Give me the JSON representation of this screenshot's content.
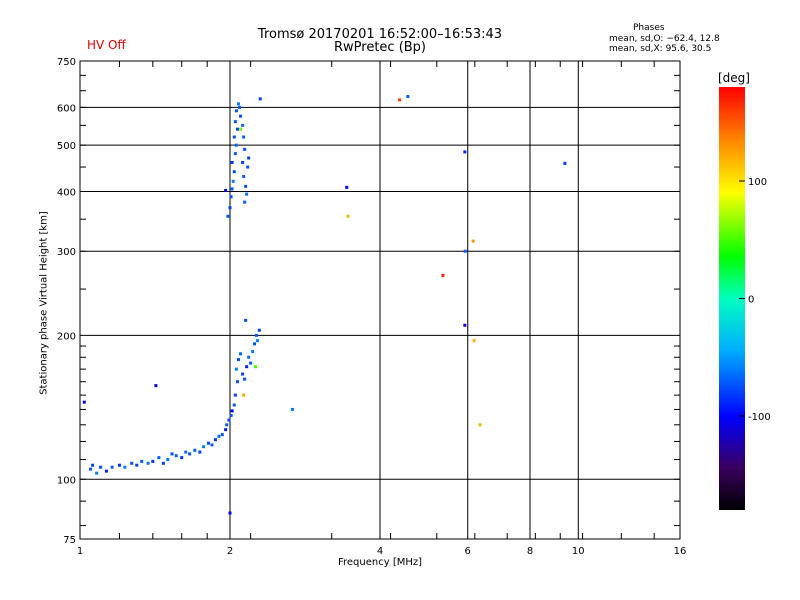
{
  "header": {
    "title": "Tromsø 20170201 16:52:00–16:53:43",
    "subtitle": "RwPretec (Bp)",
    "status": "HV Off",
    "status_color": "#e00000",
    "phases_title": "Phases",
    "phases_o": "mean, sd,O: −62.4, 12.8",
    "phases_x": "mean, sd,X:  95.6, 30.5"
  },
  "chart_data": {
    "type": "scatter",
    "title": "Tromsø 20170201 16:52:00–16:53:43",
    "subtitle": "RwPretec (Bp)",
    "xlabel": "Frequency [MHz]",
    "ylabel": "Stationary phase Virtual Height [km]",
    "x_scale": "log",
    "y_scale": "log",
    "xlim": [
      1,
      16
    ],
    "ylim": [
      75,
      750
    ],
    "x_ticks": [
      1,
      2,
      4,
      6,
      8,
      10,
      16
    ],
    "x_tick_labels": [
      "1",
      "2",
      "4",
      "6",
      "8",
      "10",
      "16"
    ],
    "y_ticks": [
      75,
      100,
      200,
      300,
      400,
      500,
      600,
      750
    ],
    "y_tick_labels": [
      "75",
      "100",
      "200",
      "300",
      "400",
      "500",
      "600",
      "750"
    ],
    "grid": true,
    "colorbar": {
      "label": "[deg]",
      "range": [
        -180,
        180
      ],
      "ticks": [
        100,
        0,
        -100
      ],
      "tick_labels": [
        "100",
        "0",
        "-100"
      ]
    },
    "points": [
      [
        1.02,
        145,
        -100
      ],
      [
        1.05,
        105,
        -70
      ],
      [
        1.06,
        107,
        -80
      ],
      [
        1.08,
        103,
        -60
      ],
      [
        1.1,
        106,
        -75
      ],
      [
        1.13,
        104,
        -90
      ],
      [
        1.16,
        106,
        -70
      ],
      [
        1.2,
        107,
        -85
      ],
      [
        1.23,
        106,
        -60
      ],
      [
        1.27,
        108,
        -75
      ],
      [
        1.3,
        107,
        -80
      ],
      [
        1.33,
        109,
        -70
      ],
      [
        1.37,
        108,
        -65
      ],
      [
        1.4,
        109,
        -85
      ],
      [
        1.42,
        157,
        -110
      ],
      [
        1.44,
        111,
        -70
      ],
      [
        1.47,
        108,
        -80
      ],
      [
        1.5,
        110,
        -60
      ],
      [
        1.53,
        113,
        -75
      ],
      [
        1.56,
        112,
        -70
      ],
      [
        1.6,
        111,
        -85
      ],
      [
        1.63,
        114,
        -65
      ],
      [
        1.66,
        113,
        -75
      ],
      [
        1.7,
        115,
        -70
      ],
      [
        1.74,
        114,
        -80
      ],
      [
        1.77,
        117,
        -60
      ],
      [
        1.81,
        119,
        -75
      ],
      [
        1.84,
        118,
        -70
      ],
      [
        1.87,
        121,
        -85
      ],
      [
        1.9,
        123,
        -65
      ],
      [
        1.93,
        124,
        -75
      ],
      [
        1.96,
        127,
        -90
      ],
      [
        1.97,
        130,
        -70
      ],
      [
        1.99,
        133,
        -80
      ],
      [
        2.01,
        136,
        -75
      ],
      [
        2.02,
        139,
        -100
      ],
      [
        2.0,
        85,
        -100
      ],
      [
        2.04,
        143,
        -70
      ],
      [
        2.05,
        150,
        -80
      ],
      [
        2.07,
        160,
        -75
      ],
      [
        2.06,
        170,
        -60
      ],
      [
        2.08,
        178,
        -75
      ],
      [
        2.1,
        183,
        -70
      ],
      [
        2.12,
        166,
        -80
      ],
      [
        2.14,
        162,
        -75
      ],
      [
        2.16,
        172,
        -90
      ],
      [
        2.18,
        180,
        -65
      ],
      [
        2.2,
        175,
        -75
      ],
      [
        2.13,
        150,
        120
      ],
      [
        2.22,
        185,
        -60
      ],
      [
        2.24,
        192,
        -75
      ],
      [
        2.26,
        200,
        -70
      ],
      [
        2.27,
        195,
        -60
      ],
      [
        2.29,
        205,
        -80
      ],
      [
        2.25,
        172,
        50
      ],
      [
        2.15,
        215,
        -75
      ],
      [
        1.98,
        355,
        -70
      ],
      [
        2.0,
        370,
        -80
      ],
      [
        2.01,
        390,
        -75
      ],
      [
        2.02,
        405,
        -70
      ],
      [
        2.03,
        420,
        -60
      ],
      [
        2.04,
        440,
        -75
      ],
      [
        2.02,
        460,
        -80
      ],
      [
        2.05,
        480,
        -70
      ],
      [
        2.06,
        500,
        -65
      ],
      [
        2.04,
        520,
        -75
      ],
      [
        2.07,
        540,
        -80
      ],
      [
        2.05,
        560,
        -70
      ],
      [
        2.06,
        590,
        -75
      ],
      [
        2.08,
        610,
        -60
      ],
      [
        2.09,
        600,
        -70
      ],
      [
        2.1,
        575,
        -75
      ],
      [
        2.12,
        550,
        -65
      ],
      [
        2.13,
        520,
        -70
      ],
      [
        2.14,
        490,
        -75
      ],
      [
        2.12,
        460,
        -80
      ],
      [
        2.13,
        430,
        -70
      ],
      [
        2.15,
        410,
        -75
      ],
      [
        2.16,
        395,
        -65
      ],
      [
        2.14,
        380,
        -70
      ],
      [
        2.17,
        450,
        -75
      ],
      [
        2.18,
        470,
        -80
      ],
      [
        1.96,
        402,
        -110
      ],
      [
        2.1,
        540,
        60
      ],
      [
        2.3,
        625,
        -80
      ],
      [
        2.67,
        140,
        -60
      ],
      [
        3.43,
        408,
        -100
      ],
      [
        3.45,
        355,
        120
      ],
      [
        4.38,
        622,
        160
      ],
      [
        4.55,
        632,
        -70
      ],
      [
        5.35,
        267,
        170
      ],
      [
        5.92,
        484,
        -90
      ],
      [
        5.93,
        300,
        -70
      ],
      [
        5.92,
        210,
        -110
      ],
      [
        6.15,
        315,
        130
      ],
      [
        6.18,
        195,
        120
      ],
      [
        6.35,
        130,
        120
      ],
      [
        9.4,
        458,
        -80
      ]
    ]
  }
}
